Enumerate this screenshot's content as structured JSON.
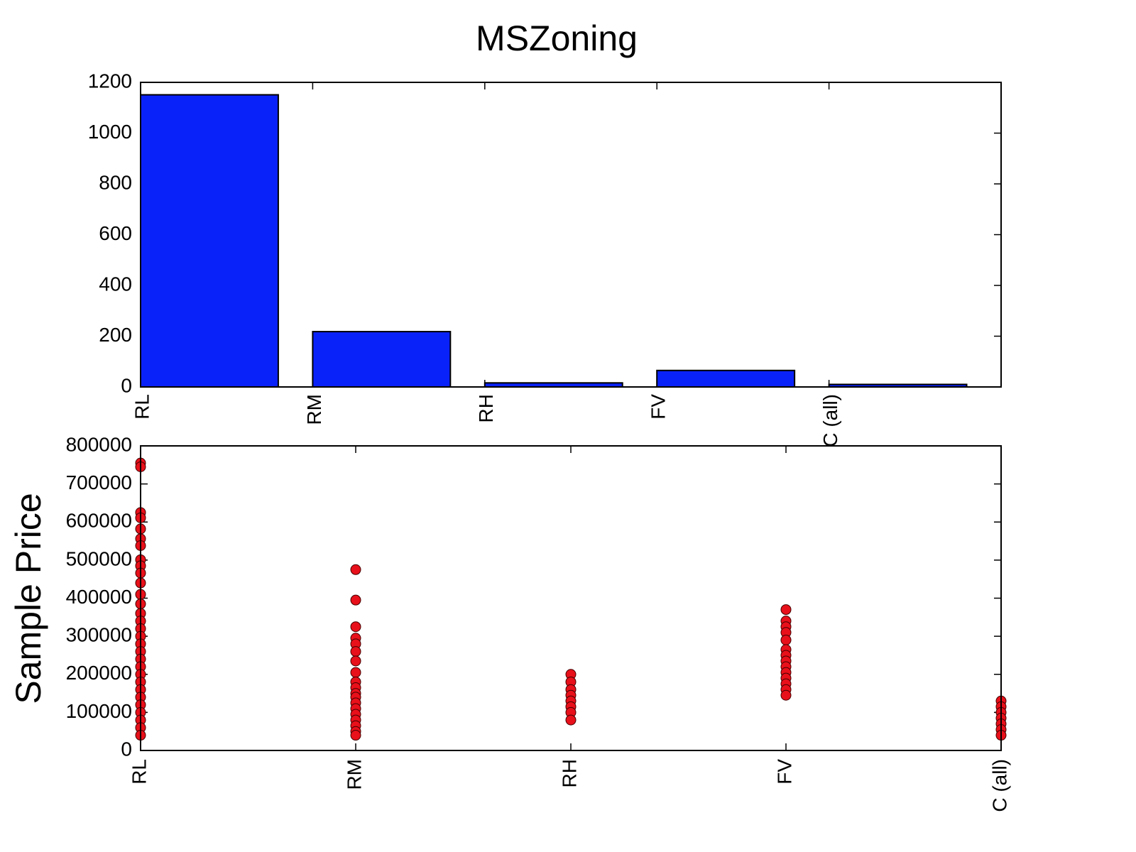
{
  "chart_data": [
    {
      "type": "bar",
      "title": "MSZoning",
      "categories": [
        "RL",
        "RM",
        "RH",
        "FV",
        "C (all)"
      ],
      "values": [
        1151,
        218,
        16,
        65,
        10
      ],
      "color": "#0a22fa",
      "ylim": [
        0,
        1200
      ],
      "yticks": [
        0,
        200,
        400,
        600,
        800,
        1000,
        1200
      ]
    },
    {
      "type": "scatter",
      "ylabel": "Sample Price",
      "xlim": [
        0,
        4
      ],
      "xticks": [
        {
          "value": 0,
          "label": "RL"
        },
        {
          "value": 1,
          "label": "RM"
        },
        {
          "value": 2,
          "label": "RH"
        },
        {
          "value": 3,
          "label": "FV"
        },
        {
          "value": 4,
          "label": "C (all)"
        }
      ],
      "ylim": [
        0,
        800000
      ],
      "yticks": [
        0,
        100000,
        200000,
        300000,
        400000,
        500000,
        600000,
        700000,
        800000
      ],
      "series": [
        {
          "color": "#e8101a",
          "x": [
            0,
            0,
            0,
            0,
            0,
            0,
            0,
            0,
            0,
            0,
            0,
            0,
            0,
            0,
            0,
            0,
            0,
            0,
            0,
            0,
            0,
            0,
            0,
            0,
            0,
            0,
            0,
            0,
            0,
            0,
            1,
            1,
            1,
            1,
            1,
            1,
            1,
            1,
            1,
            1,
            1,
            1,
            1,
            1,
            1,
            1,
            1,
            1,
            1,
            2,
            2,
            2,
            2,
            2,
            2,
            2,
            2,
            3,
            3,
            3,
            3,
            3,
            3,
            3,
            3,
            3,
            3,
            3,
            3,
            3,
            3,
            4,
            4,
            4,
            4,
            4,
            4,
            4
          ],
          "y": [
            755000,
            745000,
            625000,
            611000,
            582000,
            556000,
            538000,
            501000,
            485000,
            466000,
            440000,
            410000,
            385000,
            360000,
            340000,
            320000,
            300000,
            280000,
            260000,
            240000,
            220000,
            200000,
            180000,
            160000,
            140000,
            120000,
            100000,
            80000,
            60000,
            40000,
            475000,
            395000,
            325000,
            295000,
            280000,
            260000,
            235000,
            205000,
            180000,
            165000,
            150000,
            140000,
            125000,
            110000,
            95000,
            80000,
            65000,
            50000,
            40000,
            200000,
            180000,
            160000,
            145000,
            130000,
            115000,
            100000,
            80000,
            370000,
            340000,
            325000,
            310000,
            290000,
            265000,
            250000,
            235000,
            220000,
            205000,
            190000,
            175000,
            160000,
            145000,
            130000,
            115000,
            100000,
            85000,
            70000,
            55000,
            40000
          ]
        }
      ]
    }
  ]
}
